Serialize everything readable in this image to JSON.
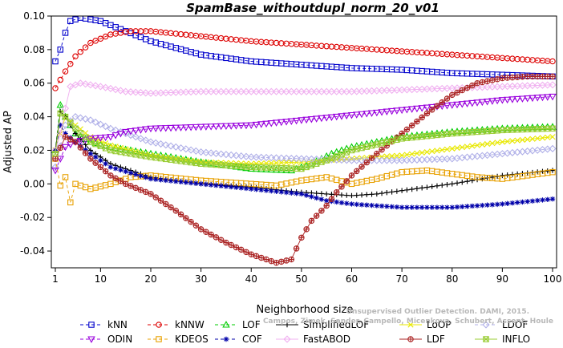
{
  "chart_data": {
    "type": "line",
    "title": "SpamBase_withoutdupl_norm_20_v01",
    "xlabel": "Neighborhood size",
    "ylabel": "Adjusted AP",
    "xlim": [
      1,
      100
    ],
    "ylim": [
      -0.05,
      0.1
    ],
    "xticks": [
      1,
      10,
      20,
      30,
      40,
      50,
      60,
      70,
      80,
      90,
      100
    ],
    "yticks": [
      -0.04,
      -0.02,
      0.0,
      0.02,
      0.04,
      0.06,
      0.08,
      0.1
    ],
    "ytick_labels": [
      "-0.04",
      "-0.02",
      "0.00",
      "0.02",
      "0.04",
      "0.06",
      "0.08",
      "0.10"
    ],
    "grid": false,
    "legend_position": "bottom",
    "watermark": "Campos, Zimek, Sander, Campello, Micenkova, Schubert, Assent, Houle",
    "watermark_line1": "Unsupervised Outlier Detection. DAMI, 2015.",
    "series": [
      {
        "name": "kNN",
        "color": "#0000cc",
        "marker": "square",
        "line": "dash",
        "points": [
          [
            1,
            0.073
          ],
          [
            2,
            0.08
          ],
          [
            3,
            0.09
          ],
          [
            4,
            0.097
          ],
          [
            6,
            0.099
          ],
          [
            10,
            0.097
          ],
          [
            15,
            0.091
          ],
          [
            20,
            0.085
          ],
          [
            30,
            0.077
          ],
          [
            40,
            0.073
          ],
          [
            50,
            0.071
          ],
          [
            60,
            0.069
          ],
          [
            70,
            0.068
          ],
          [
            80,
            0.066
          ],
          [
            90,
            0.065
          ],
          [
            100,
            0.064
          ]
        ]
      },
      {
        "name": "kNNW",
        "color": "#dd0000",
        "marker": "circle",
        "line": "dash",
        "points": [
          [
            1,
            0.057
          ],
          [
            3,
            0.067
          ],
          [
            5,
            0.076
          ],
          [
            8,
            0.084
          ],
          [
            12,
            0.089
          ],
          [
            16,
            0.091
          ],
          [
            20,
            0.091
          ],
          [
            30,
            0.088
          ],
          [
            40,
            0.085
          ],
          [
            50,
            0.083
          ],
          [
            60,
            0.081
          ],
          [
            70,
            0.079
          ],
          [
            80,
            0.077
          ],
          [
            90,
            0.075
          ],
          [
            100,
            0.073
          ]
        ]
      },
      {
        "name": "LOF",
        "color": "#00cc00",
        "marker": "triangle",
        "line": "dash",
        "points": [
          [
            1,
            0.02
          ],
          [
            2,
            0.047
          ],
          [
            3,
            0.04
          ],
          [
            5,
            0.03
          ],
          [
            8,
            0.025
          ],
          [
            12,
            0.022
          ],
          [
            20,
            0.018
          ],
          [
            30,
            0.013
          ],
          [
            40,
            0.009
          ],
          [
            48,
            0.008
          ],
          [
            52,
            0.012
          ],
          [
            56,
            0.018
          ],
          [
            60,
            0.022
          ],
          [
            70,
            0.028
          ],
          [
            80,
            0.031
          ],
          [
            90,
            0.033
          ],
          [
            100,
            0.034
          ]
        ]
      },
      {
        "name": "SimplifiedLOF",
        "color": "#000000",
        "marker": "plus",
        "line": "solid",
        "points": [
          [
            1,
            0.02
          ],
          [
            2,
            0.043
          ],
          [
            3,
            0.04
          ],
          [
            5,
            0.03
          ],
          [
            8,
            0.02
          ],
          [
            12,
            0.012
          ],
          [
            20,
            0.004
          ],
          [
            30,
            0.0
          ],
          [
            40,
            -0.002
          ],
          [
            50,
            -0.005
          ],
          [
            60,
            -0.007
          ],
          [
            65,
            -0.006
          ],
          [
            70,
            -0.004
          ],
          [
            80,
            0.0
          ],
          [
            90,
            0.005
          ],
          [
            100,
            0.008
          ]
        ]
      },
      {
        "name": "LoOP",
        "color": "#e8e800",
        "marker": "x",
        "line": "solid",
        "points": [
          [
            1,
            0.02
          ],
          [
            3,
            0.04
          ],
          [
            5,
            0.035
          ],
          [
            8,
            0.028
          ],
          [
            12,
            0.023
          ],
          [
            20,
            0.017
          ],
          [
            30,
            0.013
          ],
          [
            40,
            0.012
          ],
          [
            50,
            0.013
          ],
          [
            60,
            0.015
          ],
          [
            70,
            0.017
          ],
          [
            80,
            0.021
          ],
          [
            90,
            0.025
          ],
          [
            100,
            0.028
          ]
        ]
      },
      {
        "name": "LDOF",
        "color": "#b0b0e8",
        "marker": "diamond",
        "line": "dash",
        "points": [
          [
            1,
            0.01
          ],
          [
            3,
            0.035
          ],
          [
            5,
            0.04
          ],
          [
            8,
            0.038
          ],
          [
            12,
            0.033
          ],
          [
            20,
            0.025
          ],
          [
            30,
            0.019
          ],
          [
            40,
            0.016
          ],
          [
            50,
            0.015
          ],
          [
            60,
            0.014
          ],
          [
            70,
            0.014
          ],
          [
            80,
            0.015
          ],
          [
            90,
            0.018
          ],
          [
            100,
            0.021
          ]
        ]
      },
      {
        "name": "ODIN",
        "color": "#9900dd",
        "marker": "invtriangle",
        "line": "dash",
        "points": [
          [
            1,
            0.008
          ],
          [
            2,
            0.015
          ],
          [
            3,
            0.022
          ],
          [
            5,
            0.025
          ],
          [
            8,
            0.027
          ],
          [
            12,
            0.028
          ],
          [
            15,
            0.031
          ],
          [
            20,
            0.033
          ],
          [
            30,
            0.034
          ],
          [
            40,
            0.035
          ],
          [
            50,
            0.038
          ],
          [
            60,
            0.041
          ],
          [
            70,
            0.044
          ],
          [
            80,
            0.047
          ],
          [
            90,
            0.05
          ],
          [
            100,
            0.052
          ]
        ]
      },
      {
        "name": "KDEOS",
        "color": "#e8a000",
        "marker": "square",
        "line": "dash",
        "points": [
          [
            1,
            0.015
          ],
          [
            2,
            -0.001
          ],
          [
            3,
            0.004
          ],
          [
            4,
            -0.011
          ],
          [
            5,
            0.0
          ],
          [
            8,
            -0.003
          ],
          [
            12,
            0.0
          ],
          [
            16,
            0.004
          ],
          [
            20,
            0.005
          ],
          [
            30,
            0.002
          ],
          [
            40,
            0.0
          ],
          [
            45,
            -0.001
          ],
          [
            50,
            0.002
          ],
          [
            55,
            0.004
          ],
          [
            60,
            0.0
          ],
          [
            65,
            0.003
          ],
          [
            70,
            0.007
          ],
          [
            75,
            0.008
          ],
          [
            80,
            0.006
          ],
          [
            85,
            0.004
          ],
          [
            90,
            0.003
          ],
          [
            95,
            0.005
          ],
          [
            100,
            0.007
          ]
        ]
      },
      {
        "name": "COF",
        "color": "#0000aa",
        "marker": "star",
        "line": "dash",
        "points": [
          [
            1,
            0.02
          ],
          [
            2,
            0.035
          ],
          [
            3,
            0.03
          ],
          [
            5,
            0.025
          ],
          [
            8,
            0.018
          ],
          [
            12,
            0.01
          ],
          [
            20,
            0.003
          ],
          [
            30,
            0.0
          ],
          [
            40,
            -0.003
          ],
          [
            50,
            -0.006
          ],
          [
            55,
            -0.01
          ],
          [
            60,
            -0.012
          ],
          [
            70,
            -0.014
          ],
          [
            80,
            -0.014
          ],
          [
            90,
            -0.012
          ],
          [
            100,
            -0.009
          ]
        ]
      },
      {
        "name": "FastABOD",
        "color": "#f0b0f0",
        "marker": "diamond",
        "line": "solid",
        "points": [
          [
            1,
            0.02
          ],
          [
            2,
            0.03
          ],
          [
            3,
            0.045
          ],
          [
            4,
            0.058
          ],
          [
            6,
            0.06
          ],
          [
            10,
            0.058
          ],
          [
            15,
            0.055
          ],
          [
            20,
            0.054
          ],
          [
            30,
            0.055
          ],
          [
            40,
            0.055
          ],
          [
            50,
            0.055
          ],
          [
            60,
            0.055
          ],
          [
            70,
            0.056
          ],
          [
            80,
            0.057
          ],
          [
            90,
            0.058
          ],
          [
            100,
            0.059
          ]
        ]
      },
      {
        "name": "LDF",
        "color": "#aa2222",
        "marker": "circleplus",
        "line": "solid",
        "points": [
          [
            1,
            0.015
          ],
          [
            3,
            0.028
          ],
          [
            5,
            0.025
          ],
          [
            8,
            0.015
          ],
          [
            12,
            0.005
          ],
          [
            15,
            0.0
          ],
          [
            20,
            -0.006
          ],
          [
            25,
            -0.016
          ],
          [
            30,
            -0.027
          ],
          [
            35,
            -0.035
          ],
          [
            40,
            -0.042
          ],
          [
            45,
            -0.047
          ],
          [
            48,
            -0.045
          ],
          [
            50,
            -0.032
          ],
          [
            52,
            -0.022
          ],
          [
            55,
            -0.013
          ],
          [
            57,
            -0.005
          ],
          [
            60,
            0.005
          ],
          [
            65,
            0.018
          ],
          [
            70,
            0.03
          ],
          [
            75,
            0.042
          ],
          [
            80,
            0.053
          ],
          [
            85,
            0.06
          ],
          [
            90,
            0.063
          ],
          [
            95,
            0.064
          ],
          [
            100,
            0.064
          ]
        ]
      },
      {
        "name": "INFLO",
        "color": "#99cc33",
        "marker": "boxx",
        "line": "solid",
        "points": [
          [
            1,
            0.018
          ],
          [
            2,
            0.042
          ],
          [
            3,
            0.04
          ],
          [
            5,
            0.033
          ],
          [
            8,
            0.025
          ],
          [
            12,
            0.02
          ],
          [
            20,
            0.016
          ],
          [
            30,
            0.012
          ],
          [
            40,
            0.01
          ],
          [
            50,
            0.009
          ],
          [
            55,
            0.014
          ],
          [
            60,
            0.02
          ],
          [
            70,
            0.027
          ],
          [
            80,
            0.03
          ],
          [
            90,
            0.032
          ],
          [
            100,
            0.033
          ]
        ]
      }
    ],
    "legend_rows": [
      [
        "kNN",
        "kNNW",
        "LOF",
        "SimplifiedLOF",
        "LoOP",
        "LDOF"
      ],
      [
        "ODIN",
        "KDEOS",
        "COF",
        "FastABOD",
        "LDF",
        "INFLO"
      ]
    ]
  }
}
